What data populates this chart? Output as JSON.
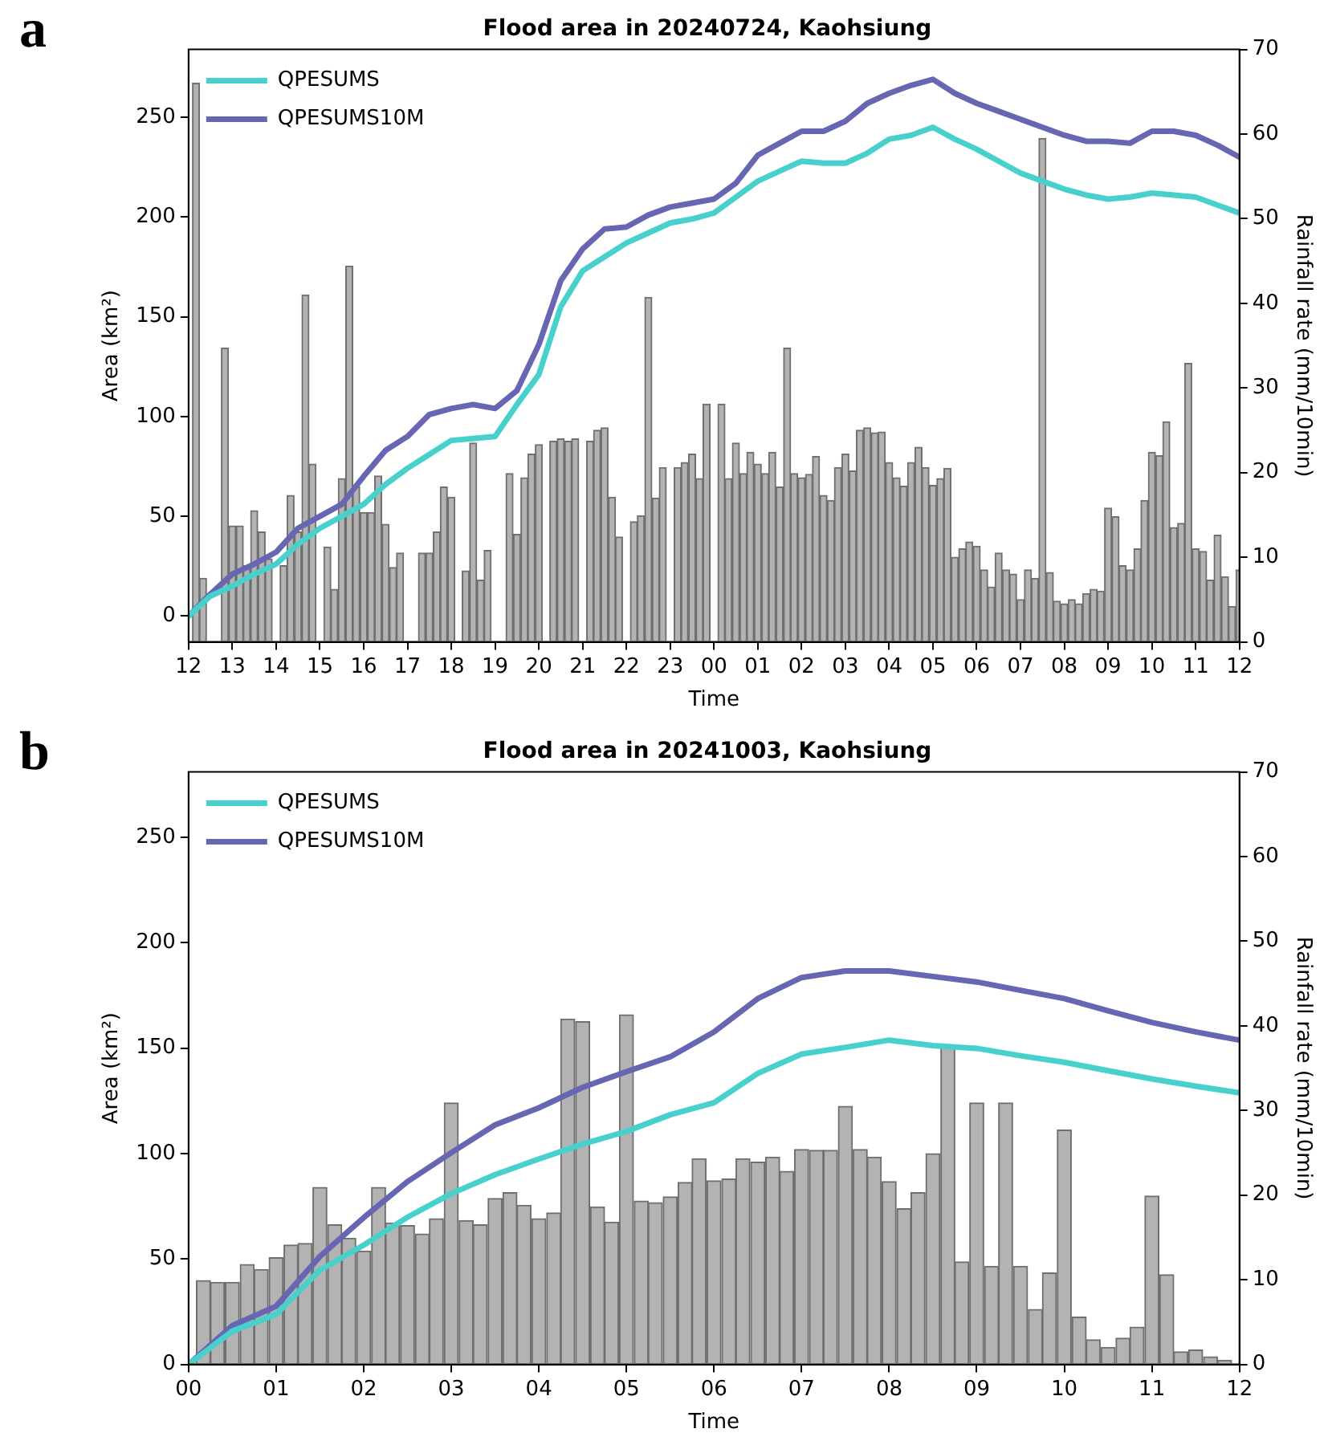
{
  "chart_data": [
    {
      "type": "bar",
      "title": "Flood area in 20240724, Kaohsiung",
      "xlabel": "Time",
      "ylabel": "Area (km²)",
      "y2label": "Rainfall rate (mm/10min)",
      "annotations": [
        "a"
      ],
      "legend": "top left",
      "marker": "none",
      "xlim": [
        12,
        36
      ],
      "xticks": [
        {
          "value": 12,
          "label": "12"
        },
        {
          "value": 13,
          "label": "13"
        },
        {
          "value": 14,
          "label": "14"
        },
        {
          "value": 15,
          "label": "15"
        },
        {
          "value": 16,
          "label": "16"
        },
        {
          "value": 17,
          "label": "17"
        },
        {
          "value": 18,
          "label": "18"
        },
        {
          "value": 19,
          "label": "19"
        },
        {
          "value": 20,
          "label": "20"
        },
        {
          "value": 21,
          "label": "21"
        },
        {
          "value": 22,
          "label": "22"
        },
        {
          "value": 23,
          "label": "23"
        },
        {
          "value": 24,
          "label": "00"
        },
        {
          "value": 25,
          "label": "01"
        },
        {
          "value": 26,
          "label": "02"
        },
        {
          "value": 27,
          "label": "03"
        },
        {
          "value": 28,
          "label": "04"
        },
        {
          "value": 29,
          "label": "05"
        },
        {
          "value": 30,
          "label": "06"
        },
        {
          "value": 31,
          "label": "07"
        },
        {
          "value": 32,
          "label": "08"
        },
        {
          "value": 33,
          "label": "09"
        },
        {
          "value": 34,
          "label": "10"
        },
        {
          "value": 35,
          "label": "11"
        },
        {
          "value": 36,
          "label": "12"
        }
      ],
      "ylim": [
        -13,
        284
      ],
      "yticks": [
        0,
        50,
        100,
        150,
        200,
        250
      ],
      "y2lim": [
        0,
        70
      ],
      "y2ticks": [
        0,
        10,
        20,
        30,
        40,
        50,
        60,
        70
      ],
      "series": [
        {
          "axis": "y2",
          "color": "#b3b3b3",
          "x": [
            12.17,
            12.33,
            12.5,
            12.67,
            12.83,
            13,
            13.17,
            13.33,
            13.5,
            13.67,
            13.83,
            14,
            14.17,
            14.33,
            14.5,
            14.67,
            14.83,
            15,
            15.17,
            15.33,
            15.5,
            15.67,
            15.83,
            16,
            16.17,
            16.33,
            16.5,
            16.67,
            16.83,
            17,
            17.17,
            17.33,
            17.5,
            17.67,
            17.83,
            18,
            18.17,
            18.33,
            18.5,
            18.67,
            18.83,
            19,
            19.17,
            19.33,
            19.5,
            19.67,
            19.83,
            20,
            20.17,
            20.33,
            20.5,
            20.67,
            20.83,
            21,
            21.17,
            21.33,
            21.5,
            21.67,
            21.83,
            22,
            22.17,
            22.33,
            22.5,
            22.67,
            22.83,
            23,
            23.17,
            23.33,
            23.5,
            23.67,
            23.83,
            24,
            24.17,
            24.33,
            24.5,
            24.67,
            24.83,
            25,
            25.17,
            25.33,
            25.5,
            25.67,
            25.83,
            26,
            26.17,
            26.33,
            26.5,
            26.67,
            26.83,
            27,
            27.17,
            27.33,
            27.5,
            27.67,
            27.83,
            28,
            28.17,
            28.33,
            28.5,
            28.67,
            28.83,
            29,
            29.17,
            29.33,
            29.5,
            29.67,
            29.83,
            30,
            30.17,
            30.33,
            30.5,
            30.67,
            30.83,
            31,
            31.17,
            31.33,
            31.5,
            31.67,
            31.83,
            32,
            32.17,
            32.33,
            32.5,
            32.67,
            32.83,
            33,
            33.17,
            33.33,
            33.5,
            33.67,
            33.83,
            34,
            34.17,
            34.33,
            34.5,
            34.67,
            34.83,
            35,
            35.17,
            35.33,
            35.5,
            35.67,
            35.83,
            36
          ],
          "values": [
            66,
            7.5,
            null,
            null,
            34.7,
            13.7,
            13.7,
            9,
            15.5,
            13,
            9.8,
            null,
            9,
            17.3,
            13,
            41,
            21,
            null,
            11.2,
            6.2,
            19.3,
            44.4,
            18.3,
            15.3,
            15.3,
            19.6,
            13.9,
            8.8,
            10.5,
            null,
            null,
            10.5,
            10.5,
            13,
            18.3,
            17.1,
            null,
            8.4,
            23.5,
            7.3,
            10.8,
            null,
            null,
            19.9,
            12.7,
            19.4,
            22.2,
            23.3,
            null,
            23.7,
            24,
            23.7,
            24,
            null,
            23.7,
            25,
            25.3,
            17.1,
            12.4,
            null,
            14.2,
            14.9,
            40.7,
            17,
            20.6,
            null,
            20.6,
            21.2,
            22.2,
            19.3,
            28.1,
            null,
            28.1,
            19.3,
            23.5,
            19.9,
            22.4,
            21,
            19.9,
            22.4,
            18.3,
            34.7,
            19.9,
            19.4,
            19.8,
            21.9,
            17.3,
            16.7,
            20.6,
            22.2,
            20.2,
            25,
            25.3,
            24.7,
            24.8,
            21.2,
            19.4,
            18.4,
            21.2,
            23,
            20.6,
            18.5,
            19.3,
            20.5,
            10,
            11,
            11.8,
            11.3,
            8.5,
            6.5,
            10.5,
            8.5,
            8,
            5,
            8.5,
            7.5,
            59.5,
            8.2,
            4.8,
            4.5,
            5,
            4.5,
            5.7,
            6.2,
            6,
            15.8,
            14.8,
            9,
            8.5,
            11,
            16.7,
            22.4,
            22,
            26,
            13.5,
            14,
            32.9,
            11,
            10.7,
            7.3,
            12.6,
            7.7,
            4.2,
            8.5
          ]
        },
        {
          "type": "line",
          "name": "QPESUMS",
          "color": "#48d1cc",
          "x": [
            12,
            12.5,
            13,
            13.5,
            14,
            14.5,
            15,
            15.5,
            16,
            16.5,
            17,
            17.5,
            18,
            18.5,
            19,
            19.5,
            20,
            20.5,
            21,
            21.5,
            22,
            22.5,
            23,
            23.5,
            24,
            24.5,
            25,
            25.5,
            26,
            26.5,
            27,
            27.5,
            28,
            28.5,
            29,
            29.5,
            30,
            30.5,
            31,
            31.5,
            32,
            32.5,
            33,
            33.5,
            34,
            34.5,
            35,
            35.5,
            36
          ],
          "values": [
            0,
            10,
            15,
            21,
            26,
            36,
            44,
            50,
            56,
            66,
            74,
            81,
            88,
            89,
            90,
            106,
            121,
            155,
            173,
            180,
            187,
            192,
            197,
            199,
            202,
            210,
            218,
            223,
            228,
            227,
            227,
            232,
            239,
            241,
            245,
            239,
            234,
            228,
            222,
            218,
            214,
            211,
            209,
            210,
            212,
            211,
            210,
            206,
            202
          ]
        },
        {
          "type": "line",
          "name": "QPESUMS10M",
          "color": "#6666b3",
          "x": [
            12,
            12.5,
            13,
            13.5,
            14,
            14.5,
            15,
            15.5,
            16,
            16.5,
            17,
            17.5,
            18,
            18.5,
            19,
            19.5,
            20,
            20.5,
            21,
            21.5,
            22,
            22.5,
            23,
            23.5,
            24,
            24.5,
            25,
            25.5,
            26,
            26.5,
            27,
            27.5,
            28,
            28.5,
            29,
            29.5,
            30,
            30.5,
            31,
            31.5,
            32,
            32.5,
            33,
            33.5,
            34,
            34.5,
            35,
            35.5,
            36
          ],
          "values": [
            0,
            11,
            21,
            26,
            32,
            44,
            50,
            56,
            70,
            83,
            90,
            101,
            104,
            106,
            104,
            113,
            136,
            168,
            184,
            194,
            195,
            201,
            205,
            207,
            209,
            217,
            231,
            237,
            243,
            243,
            248,
            257,
            262,
            266,
            269,
            262,
            257,
            253,
            249,
            245,
            241,
            238,
            238,
            237,
            243,
            243,
            241,
            236,
            230
          ]
        }
      ]
    },
    {
      "type": "bar",
      "title": "Flood area in 20241003, Kaohsiung",
      "xlabel": "Time",
      "ylabel": "Area (km²)",
      "y2label": "Rainfall rate (mm/10min)",
      "annotations": [
        "b"
      ],
      "legend": "top left",
      "marker": "none",
      "xlim": [
        0,
        12
      ],
      "xticks": [
        {
          "value": 0,
          "label": "00"
        },
        {
          "value": 1,
          "label": "01"
        },
        {
          "value": 2,
          "label": "02"
        },
        {
          "value": 3,
          "label": "03"
        },
        {
          "value": 4,
          "label": "04"
        },
        {
          "value": 5,
          "label": "05"
        },
        {
          "value": 6,
          "label": "06"
        },
        {
          "value": 7,
          "label": "07"
        },
        {
          "value": 8,
          "label": "08"
        },
        {
          "value": 9,
          "label": "09"
        },
        {
          "value": 10,
          "label": "10"
        },
        {
          "value": 11,
          "label": "11"
        },
        {
          "value": 12,
          "label": "12"
        }
      ],
      "ylim": [
        0,
        281
      ],
      "yticks": [
        0,
        50,
        100,
        150,
        200,
        250
      ],
      "y2lim": [
        0,
        70
      ],
      "y2ticks": [
        0,
        10,
        20,
        30,
        40,
        50,
        60,
        70
      ],
      "series": [
        {
          "axis": "y2",
          "color": "#b3b3b3",
          "x": [
            0.17,
            0.33,
            0.5,
            0.67,
            0.83,
            1,
            1.17,
            1.33,
            1.5,
            1.67,
            1.83,
            2,
            2.17,
            2.33,
            2.5,
            2.67,
            2.83,
            3,
            3.17,
            3.33,
            3.5,
            3.67,
            3.83,
            4,
            4.17,
            4.33,
            4.5,
            4.67,
            4.83,
            5,
            5.17,
            5.33,
            5.5,
            5.67,
            5.83,
            6,
            6.17,
            6.33,
            6.5,
            6.67,
            6.83,
            7,
            7.17,
            7.33,
            7.5,
            7.67,
            7.83,
            8,
            8.17,
            8.33,
            8.5,
            8.67,
            8.83,
            9,
            9.17,
            9.33,
            9.5,
            9.67,
            9.83,
            10,
            10.17,
            10.33,
            10.5,
            10.67,
            10.83,
            11,
            11.17,
            11.33,
            11.5,
            11.67,
            11.83
          ],
          "values": [
            9.9,
            9.7,
            9.7,
            11.8,
            11.2,
            12.6,
            14.1,
            14.3,
            20.9,
            16.5,
            14.9,
            13.4,
            20.9,
            16.7,
            16.4,
            15.4,
            17.2,
            30.9,
            17,
            16.5,
            19.6,
            20.3,
            18.8,
            17.2,
            17.9,
            40.8,
            40.5,
            18.6,
            16.8,
            41.3,
            19.3,
            19.1,
            19.8,
            21.5,
            24.3,
            21.7,
            21.9,
            24.3,
            23.9,
            24.5,
            22.8,
            25.4,
            25.3,
            25.3,
            30.5,
            25.4,
            24.5,
            21.6,
            18.4,
            20.3,
            24.9,
            37.6,
            12.1,
            30.9,
            11.6,
            30.9,
            11.6,
            6.5,
            10.8,
            27.7,
            5.6,
            2.9,
            2,
            3.1,
            4.4,
            19.9,
            10.6,
            1.5,
            1.7,
            0.9,
            0.5
          ]
        },
        {
          "type": "line",
          "name": "QPESUMS",
          "color": "#48d1cc",
          "x": [
            0,
            0.5,
            1,
            1.5,
            2,
            2.5,
            3,
            3.5,
            4,
            4.5,
            5,
            5.5,
            6,
            6.5,
            7,
            7.5,
            8,
            8.5,
            9,
            9.5,
            10,
            10.5,
            11,
            11.5,
            12
          ],
          "values": [
            0,
            15.8,
            23.7,
            44.7,
            56.6,
            69.8,
            81,
            90,
            97.4,
            104.5,
            110.5,
            118.4,
            124.1,
            138,
            147.2,
            150.4,
            153.8,
            151.2,
            149.9,
            146.4,
            143.3,
            139.3,
            135.4,
            132,
            128.8
          ]
        },
        {
          "type": "line",
          "name": "QPESUMS10M",
          "color": "#6666b3",
          "x": [
            0,
            0.5,
            1,
            1.5,
            2,
            2.5,
            3,
            3.5,
            4,
            4.5,
            5,
            5.5,
            6,
            6.5,
            7,
            7.5,
            8,
            8.5,
            9,
            9.5,
            10,
            10.5,
            11,
            11.5,
            12
          ],
          "values": [
            0,
            18.4,
            27.6,
            51.2,
            69.6,
            86.7,
            100.4,
            113.6,
            121.7,
            131.4,
            138.8,
            145.9,
            157.7,
            173.5,
            183.5,
            186.6,
            186.6,
            184,
            181.4,
            177.4,
            173.5,
            167.7,
            162.2,
            157.7,
            153.8
          ]
        }
      ]
    }
  ]
}
